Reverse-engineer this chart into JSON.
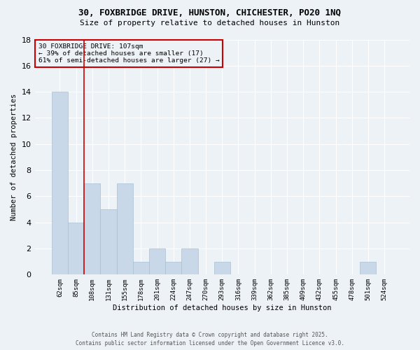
{
  "title_line1": "30, FOXBRIDGE DRIVE, HUNSTON, CHICHESTER, PO20 1NQ",
  "title_line2": "Size of property relative to detached houses in Hunston",
  "xlabel": "Distribution of detached houses by size in Hunston",
  "ylabel": "Number of detached properties",
  "bar_color": "#c8d8e8",
  "bar_edge_color": "#a8c0d0",
  "categories": [
    "62sqm",
    "85sqm",
    "108sqm",
    "131sqm",
    "155sqm",
    "178sqm",
    "201sqm",
    "224sqm",
    "247sqm",
    "270sqm",
    "293sqm",
    "316sqm",
    "339sqm",
    "362sqm",
    "385sqm",
    "409sqm",
    "432sqm",
    "455sqm",
    "478sqm",
    "501sqm",
    "524sqm"
  ],
  "values": [
    14,
    4,
    7,
    5,
    7,
    1,
    2,
    1,
    2,
    0,
    1,
    0,
    0,
    0,
    0,
    0,
    0,
    0,
    0,
    1,
    0
  ],
  "ylim": [
    0,
    18
  ],
  "yticks": [
    0,
    2,
    4,
    6,
    8,
    10,
    12,
    14,
    16,
    18
  ],
  "vline_x_idx": 2,
  "vline_color": "#cc0000",
  "annotation_text": "30 FOXBRIDGE DRIVE: 107sqm\n← 39% of detached houses are smaller (17)\n61% of semi-detached houses are larger (27) →",
  "box_color": "#cc0000",
  "background_color": "#edf2f7",
  "grid_color": "#ffffff",
  "footer_line1": "Contains HM Land Registry data © Crown copyright and database right 2025.",
  "footer_line2": "Contains public sector information licensed under the Open Government Licence v3.0."
}
